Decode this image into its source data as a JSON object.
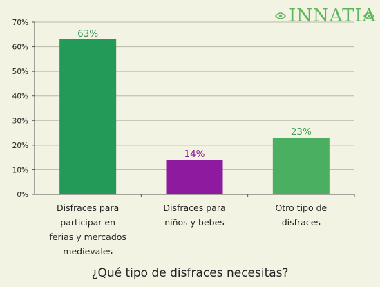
{
  "brand": {
    "logo_text": "INNATIA"
  },
  "colors": {
    "background": "#f3f3e3",
    "logo": "#5db55a"
  },
  "chart_data": {
    "type": "bar",
    "title": "¿Qué tipo de disfraces necesitas?",
    "categories": [
      "Disfraces para participar en ferias y mercados medievales",
      "Disfraces para niños y bebes",
      "Otro tipo de disfraces"
    ],
    "category_lines": [
      [
        "Disfraces para",
        "participar en",
        "ferias y mercados",
        "medievales"
      ],
      [
        "Disfraces para",
        "niños y bebes"
      ],
      [
        "Otro tipo de",
        "disfraces"
      ]
    ],
    "values": [
      63,
      14,
      23
    ],
    "value_labels": [
      "63%",
      "14%",
      "23%"
    ],
    "bar_colors": [
      "#239a57",
      "#8e1aa0",
      "#4aaf60"
    ],
    "label_colors": [
      "#2f8f55",
      "#8e1aa0",
      "#3d9f55"
    ],
    "ylim": [
      0,
      70
    ],
    "yticks": [
      0,
      10,
      20,
      30,
      40,
      50,
      60,
      70
    ],
    "ytick_labels": [
      "0%",
      "10%",
      "20%",
      "30%",
      "40%",
      "50%",
      "60%",
      "70%"
    ],
    "grid": true,
    "xlabel": "",
    "ylabel": ""
  }
}
